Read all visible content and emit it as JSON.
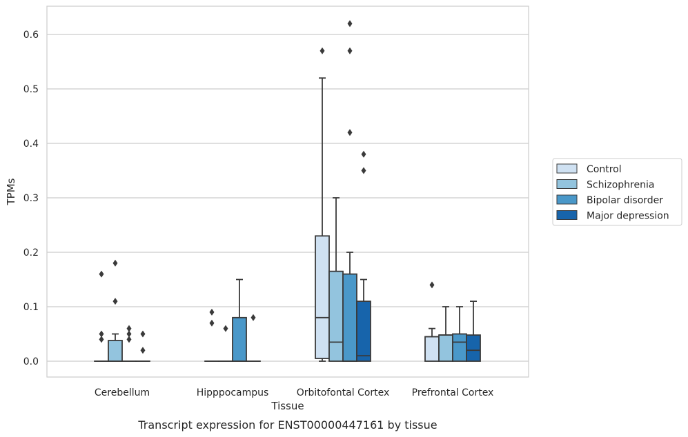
{
  "chart_data": {
    "type": "box",
    "title": "",
    "caption": "Transcript expression for ENST00000447161 by tissue",
    "xlabel": "Tissue",
    "ylabel": "TPMs",
    "ylim": [
      -0.03,
      0.655
    ],
    "yticks": [
      "0.0",
      "0.1",
      "0.2",
      "0.3",
      "0.4",
      "0.5",
      "0.6"
    ],
    "grid": "horizontal",
    "legend_position": "right",
    "categories": [
      "Cerebellum",
      "Hipppocampus",
      "Orbitofontal Cortex",
      "Prefrontal Cortex"
    ],
    "series": [
      {
        "name": "Control",
        "color": "#cfe1f2",
        "boxes": [
          {
            "whislo": 0,
            "q1": 0,
            "med": 0,
            "q3": 0,
            "whishi": 0,
            "fliers": []
          },
          {
            "whislo": 0,
            "q1": 0,
            "med": 0,
            "q3": 0,
            "whishi": 0,
            "fliers": [
              0.09,
              0.07
            ]
          },
          {
            "whislo": 0,
            "q1": 0.005,
            "med": 0.08,
            "q3": 0.23,
            "whishi": 0.52,
            "fliers": [
              0.57
            ]
          },
          {
            "whislo": 0,
            "q1": 0,
            "med": 0.045,
            "q3": 0.045,
            "whishi": 0.06,
            "fliers": [
              0.14
            ]
          }
        ]
      },
      {
        "name": "Schizophrenia",
        "color": "#93c4de",
        "boxes": [
          {
            "whislo": 0,
            "q1": 0,
            "med": 0,
            "q3": 0.038,
            "whishi": 0.05,
            "fliers": [
              0.18,
              0.11
            ]
          },
          {
            "whislo": 0,
            "q1": 0,
            "med": 0,
            "q3": 0,
            "whishi": 0,
            "fliers": [
              0.06
            ]
          },
          {
            "whislo": 0,
            "q1": 0,
            "med": 0.035,
            "q3": 0.165,
            "whishi": 0.3,
            "fliers": []
          },
          {
            "whislo": 0,
            "q1": 0,
            "med": 0.048,
            "q3": 0.048,
            "whishi": 0.1,
            "fliers": []
          }
        ]
      },
      {
        "name": "Bipolar disorder",
        "color": "#4a98c9",
        "boxes": [
          {
            "whislo": 0,
            "q1": 0,
            "med": 0,
            "q3": 0,
            "whishi": 0,
            "fliers": [
              0.06,
              0.05,
              0.04
            ]
          },
          {
            "whislo": 0,
            "q1": 0,
            "med": 0,
            "q3": 0.08,
            "whishi": 0.15,
            "fliers": []
          },
          {
            "whislo": 0,
            "q1": 0,
            "med": 0,
            "q3": 0.16,
            "whishi": 0.2,
            "fliers": [
              0.62,
              0.57,
              0.42
            ]
          },
          {
            "whislo": 0,
            "q1": 0,
            "med": 0.035,
            "q3": 0.05,
            "whishi": 0.1,
            "fliers": []
          }
        ]
      },
      {
        "name": "Major depression",
        "color": "#1764ab",
        "boxes": [
          {
            "whislo": 0,
            "q1": 0,
            "med": 0,
            "q3": 0,
            "whishi": 0,
            "fliers": [
              0.05,
              0.02
            ]
          },
          {
            "whislo": 0,
            "q1": 0,
            "med": 0,
            "q3": 0,
            "whishi": 0,
            "fliers": [
              0.08
            ]
          },
          {
            "whislo": 0,
            "q1": 0,
            "med": 0.01,
            "q3": 0.11,
            "whishi": 0.15,
            "fliers": [
              0.38,
              0.35
            ]
          },
          {
            "whislo": 0,
            "q1": 0,
            "med": 0.02,
            "q3": 0.048,
            "whishi": 0.11,
            "fliers": []
          }
        ]
      }
    ],
    "extra_fliers": [
      {
        "category": "Cerebellum",
        "series": "Control",
        "values": [
          0.16,
          0.05,
          0.04
        ]
      }
    ]
  }
}
